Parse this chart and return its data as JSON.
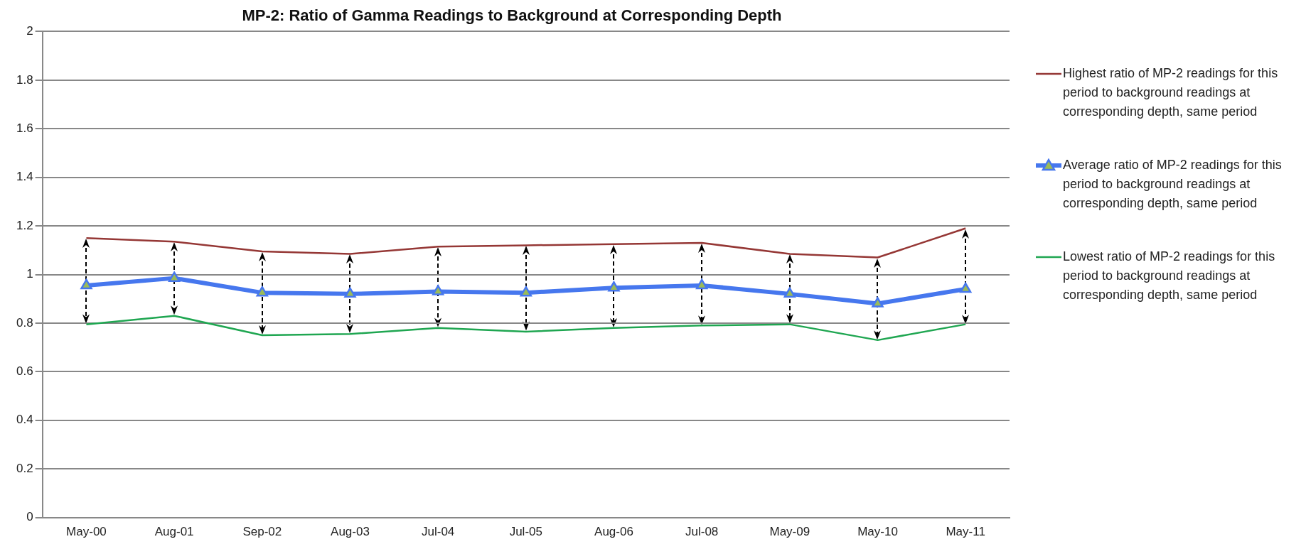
{
  "chart_data": {
    "type": "line",
    "title": "MP-2: Ratio of Gamma Readings to Background at Corresponding Depth",
    "categories": [
      "May-00",
      "Aug-01",
      "Sep-02",
      "Aug-03",
      "Jul-04",
      "Jul-05",
      "Aug-06",
      "Jul-08",
      "May-09",
      "May-10",
      "May-11"
    ],
    "series": [
      {
        "name": "Highest ratio of MP-2 readings for this period to background readings at corresponding depth, same period",
        "color": "#953735",
        "marker": "none",
        "values": [
          1.15,
          1.135,
          1.095,
          1.085,
          1.115,
          1.12,
          1.125,
          1.13,
          1.085,
          1.07,
          1.19
        ]
      },
      {
        "name": "Average ratio of MP-2 readings for this period to background readings at corresponding depth, same period",
        "color": "#4677ee",
        "marker": "triangle",
        "values": [
          0.955,
          0.985,
          0.925,
          0.92,
          0.93,
          0.925,
          0.945,
          0.955,
          0.92,
          0.88,
          0.94
        ]
      },
      {
        "name": "Lowest ratio of MP-2 readings for this period to background readings at corresponding depth, same period",
        "color": "#1fa651",
        "marker": "none",
        "values": [
          0.795,
          0.83,
          0.75,
          0.755,
          0.78,
          0.765,
          0.78,
          0.79,
          0.795,
          0.73,
          0.795
        ]
      }
    ],
    "ylim": [
      0,
      2
    ],
    "yticks": [
      0,
      0.2,
      0.4,
      0.6,
      0.8,
      1,
      1.2,
      1.4,
      1.6,
      1.8,
      2
    ],
    "grid": "y",
    "legend": "right",
    "line_style": "solid"
  }
}
